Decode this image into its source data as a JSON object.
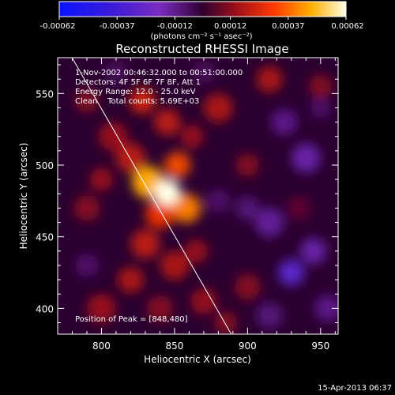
{
  "chart_data": {
    "type": "heatmap",
    "title": "Reconstructed RHESSI Image",
    "xlabel": "Heliocentric X (arcsec)",
    "ylabel": "Heliocentric Y (arcsec)",
    "xlim": [
      770,
      962
    ],
    "ylim": [
      382,
      575
    ],
    "x_ticks": [
      800,
      850,
      900,
      950
    ],
    "y_ticks": [
      400,
      450,
      500,
      550
    ],
    "colorbar": {
      "ticks": [
        "-0.00062",
        "-0.00037",
        "-0.00012",
        "0.00012",
        "0.00037",
        "0.00062"
      ],
      "range": [
        -0.00062,
        0.00062
      ],
      "label": "(photons cm⁻² s⁻¹ asec⁻²)"
    },
    "annotations": [
      "1-Nov-2002 00:46:32.000 to 00:51:00.000",
      "Detectors: 4F 5F 6F 7F 8F, Att 1",
      "Energy Range: 12.0 - 25.0 keV",
      "Clean    Total counts: 5.69E+03"
    ],
    "peak_text": "Position of Peak = [848,480]",
    "peak": [
      848,
      480
    ],
    "limb_line": [
      [
        777,
        580
      ],
      [
        890,
        380
      ]
    ],
    "footer": "15-Apr-2013 06:37",
    "blobs": [
      {
        "x": 845,
        "y": 481,
        "v": 1.0,
        "r": 9
      },
      {
        "x": 832,
        "y": 488,
        "v": 0.75,
        "r": 11
      },
      {
        "x": 858,
        "y": 470,
        "v": 0.65,
        "r": 10
      },
      {
        "x": 840,
        "y": 466,
        "v": 0.5,
        "r": 10
      },
      {
        "x": 852,
        "y": 500,
        "v": 0.55,
        "r": 9
      },
      {
        "x": 820,
        "y": 505,
        "v": 0.35,
        "r": 10
      },
      {
        "x": 808,
        "y": 520,
        "v": 0.25,
        "r": 10
      },
      {
        "x": 828,
        "y": 545,
        "v": 0.4,
        "r": 9
      },
      {
        "x": 845,
        "y": 530,
        "v": 0.35,
        "r": 9
      },
      {
        "x": 862,
        "y": 520,
        "v": 0.25,
        "r": 8
      },
      {
        "x": 880,
        "y": 540,
        "v": 0.3,
        "r": 10
      },
      {
        "x": 900,
        "y": 500,
        "v": 0.2,
        "r": 8
      },
      {
        "x": 830,
        "y": 445,
        "v": 0.35,
        "r": 10
      },
      {
        "x": 850,
        "y": 430,
        "v": 0.3,
        "r": 10
      },
      {
        "x": 865,
        "y": 440,
        "v": 0.25,
        "r": 8
      },
      {
        "x": 820,
        "y": 420,
        "v": 0.3,
        "r": 9
      },
      {
        "x": 800,
        "y": 400,
        "v": 0.25,
        "r": 10
      },
      {
        "x": 840,
        "y": 400,
        "v": 0.2,
        "r": 9
      },
      {
        "x": 870,
        "y": 405,
        "v": 0.25,
        "r": 9
      },
      {
        "x": 885,
        "y": 390,
        "v": 0.2,
        "r": 8
      },
      {
        "x": 790,
        "y": 470,
        "v": 0.2,
        "r": 9
      },
      {
        "x": 800,
        "y": 490,
        "v": 0.25,
        "r": 8
      },
      {
        "x": 790,
        "y": 545,
        "v": 0.2,
        "r": 8
      },
      {
        "x": 915,
        "y": 560,
        "v": 0.3,
        "r": 9
      },
      {
        "x": 950,
        "y": 555,
        "v": 0.2,
        "r": 8
      },
      {
        "x": 900,
        "y": 415,
        "v": 0.2,
        "r": 9
      },
      {
        "x": 935,
        "y": 470,
        "v": 0.1,
        "r": 8
      },
      {
        "x": 930,
        "y": 425,
        "v": -0.55,
        "r": 9
      },
      {
        "x": 945,
        "y": 440,
        "v": -0.35,
        "r": 9
      },
      {
        "x": 915,
        "y": 460,
        "v": -0.3,
        "r": 10
      },
      {
        "x": 940,
        "y": 505,
        "v": -0.35,
        "r": 10
      },
      {
        "x": 925,
        "y": 530,
        "v": -0.25,
        "r": 9
      },
      {
        "x": 900,
        "y": 470,
        "v": -0.2,
        "r": 8
      },
      {
        "x": 955,
        "y": 400,
        "v": -0.25,
        "r": 9
      },
      {
        "x": 915,
        "y": 395,
        "v": -0.2,
        "r": 9
      },
      {
        "x": 880,
        "y": 475,
        "v": -0.15,
        "r": 8
      },
      {
        "x": 790,
        "y": 430,
        "v": -0.15,
        "r": 8
      },
      {
        "x": 810,
        "y": 565,
        "v": -0.1,
        "r": 8
      },
      {
        "x": 870,
        "y": 565,
        "v": -0.1,
        "r": 8
      },
      {
        "x": 950,
        "y": 540,
        "v": -0.15,
        "r": 7
      }
    ]
  }
}
